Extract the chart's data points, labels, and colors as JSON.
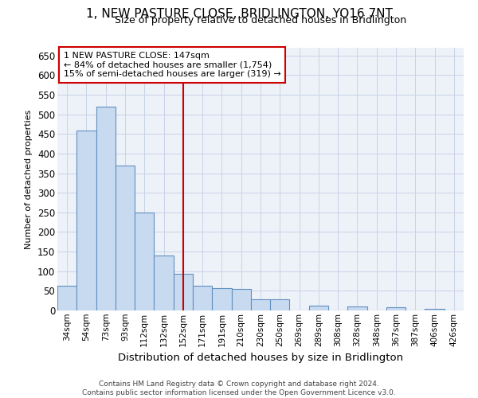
{
  "title": "1, NEW PASTURE CLOSE, BRIDLINGTON, YO16 7NT",
  "subtitle": "Size of property relative to detached houses in Bridlington",
  "xlabel": "Distribution of detached houses by size in Bridlington",
  "ylabel": "Number of detached properties",
  "footer_line1": "Contains HM Land Registry data © Crown copyright and database right 2024.",
  "footer_line2": "Contains public sector information licensed under the Open Government Licence v3.0.",
  "annotation_line1": "1 NEW PASTURE CLOSE: 147sqm",
  "annotation_line2": "← 84% of detached houses are smaller (1,754)",
  "annotation_line3": "15% of semi-detached houses are larger (319) →",
  "vline_x": 6,
  "categories": [
    "34sqm",
    "54sqm",
    "73sqm",
    "93sqm",
    "112sqm",
    "132sqm",
    "152sqm",
    "171sqm",
    "191sqm",
    "210sqm",
    "230sqm",
    "250sqm",
    "269sqm",
    "289sqm",
    "308sqm",
    "328sqm",
    "348sqm",
    "367sqm",
    "387sqm",
    "406sqm",
    "426sqm"
  ],
  "values": [
    62,
    458,
    520,
    370,
    250,
    140,
    93,
    62,
    57,
    55,
    28,
    28,
    0,
    12,
    0,
    10,
    0,
    8,
    0,
    5,
    0
  ],
  "bar_color": "#c8daf0",
  "bar_edge_color": "#6090c0",
  "vline_color": "#cc0000",
  "grid_color": "#c8d4e8",
  "background_color": "#edf1f8",
  "ylim": [
    0,
    670
  ],
  "yticks": [
    0,
    50,
    100,
    150,
    200,
    250,
    300,
    350,
    400,
    450,
    500,
    550,
    600,
    650
  ],
  "title_fontsize": 11,
  "subtitle_fontsize": 9,
  "ylabel_fontsize": 8,
  "xlabel_fontsize": 9.5,
  "annotation_fontsize": 8,
  "footer_fontsize": 6.5
}
